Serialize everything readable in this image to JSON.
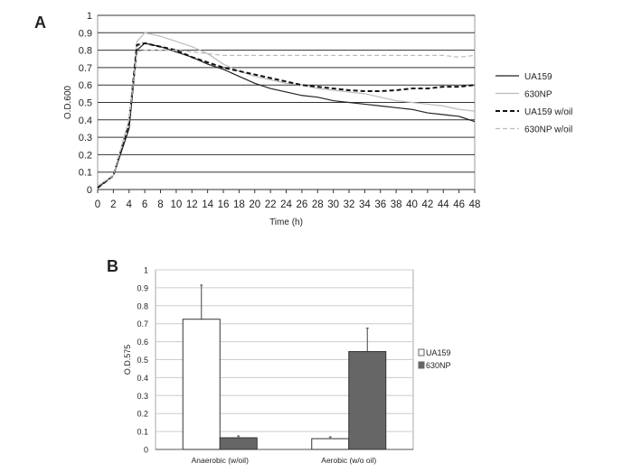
{
  "chart_data": [
    {
      "panel": "A",
      "type": "line",
      "xlabel": "Time (h)",
      "ylabel": "O.D.600",
      "xlim": [
        0,
        48
      ],
      "ylim": [
        0,
        1
      ],
      "xticks": [
        0,
        2,
        4,
        6,
        8,
        10,
        12,
        14,
        16,
        18,
        20,
        22,
        24,
        26,
        28,
        30,
        32,
        34,
        36,
        38,
        40,
        42,
        44,
        46,
        48
      ],
      "yticks": [
        "0",
        "0.1",
        "0.2",
        "0.3",
        "0.4",
        "0.5",
        "0.6",
        "0.7",
        "0.8",
        "0.9",
        "1"
      ],
      "grid": true,
      "legend_placement": "right",
      "x": [
        0,
        2,
        4,
        5,
        6,
        8,
        10,
        12,
        14,
        16,
        18,
        20,
        22,
        24,
        26,
        28,
        30,
        32,
        34,
        36,
        38,
        40,
        42,
        44,
        46,
        48
      ],
      "series": [
        {
          "name": "UA159",
          "color": "#222222",
          "dash": "",
          "values": [
            0.01,
            0.08,
            0.35,
            0.8,
            0.84,
            0.82,
            0.79,
            0.76,
            0.72,
            0.69,
            0.65,
            0.61,
            0.58,
            0.56,
            0.54,
            0.53,
            0.51,
            0.5,
            0.49,
            0.48,
            0.47,
            0.46,
            0.44,
            0.43,
            0.42,
            0.39
          ]
        },
        {
          "name": "630NP",
          "color": "#bbbbbb",
          "dash": "",
          "values": [
            0.02,
            0.08,
            0.4,
            0.85,
            0.9,
            0.88,
            0.85,
            0.82,
            0.78,
            0.72,
            0.68,
            0.65,
            0.63,
            0.61,
            0.6,
            0.58,
            0.57,
            0.56,
            0.55,
            0.53,
            0.51,
            0.5,
            0.49,
            0.48,
            0.46,
            0.45
          ]
        },
        {
          "name": "UA159 w/oil",
          "color": "#111111",
          "dash": "5,3",
          "values": [
            0.01,
            0.08,
            0.38,
            0.83,
            0.84,
            0.82,
            0.8,
            0.76,
            0.73,
            0.7,
            0.68,
            0.66,
            0.64,
            0.62,
            0.6,
            0.59,
            0.58,
            0.57,
            0.565,
            0.565,
            0.57,
            0.58,
            0.58,
            0.59,
            0.59,
            0.6
          ]
        },
        {
          "name": "630NP w/oil",
          "color": "#bbbbbb",
          "dash": "5,3",
          "values": [
            0.02,
            0.08,
            0.4,
            0.79,
            0.8,
            0.8,
            0.8,
            0.79,
            0.78,
            0.77,
            0.77,
            0.77,
            0.77,
            0.77,
            0.77,
            0.77,
            0.77,
            0.77,
            0.77,
            0.77,
            0.77,
            0.77,
            0.77,
            0.77,
            0.76,
            0.77
          ]
        }
      ]
    },
    {
      "panel": "B",
      "type": "bar",
      "ylabel": "O.D.575",
      "ylim": [
        0,
        1
      ],
      "yticks": [
        "0",
        "0.1",
        "0.2",
        "0.3",
        "0.4",
        "0.5",
        "0.6",
        "0.7",
        "0.8",
        "0.9",
        "1"
      ],
      "grid": true,
      "legend_placement": "right",
      "categories": [
        "Anaerobic (w/oil)",
        "Aerobic (w/o oil)"
      ],
      "series": [
        {
          "name": "UA159",
          "color": "#ffffff",
          "values": [
            0.725,
            0.06
          ],
          "error_upper": [
            0.915,
            0.07
          ]
        },
        {
          "name": "630NP",
          "color": "#666666",
          "values": [
            0.065,
            0.545
          ],
          "error_upper": [
            0.075,
            0.675
          ]
        }
      ]
    }
  ],
  "labels": {
    "panel_a": "A",
    "panel_b": "B"
  }
}
